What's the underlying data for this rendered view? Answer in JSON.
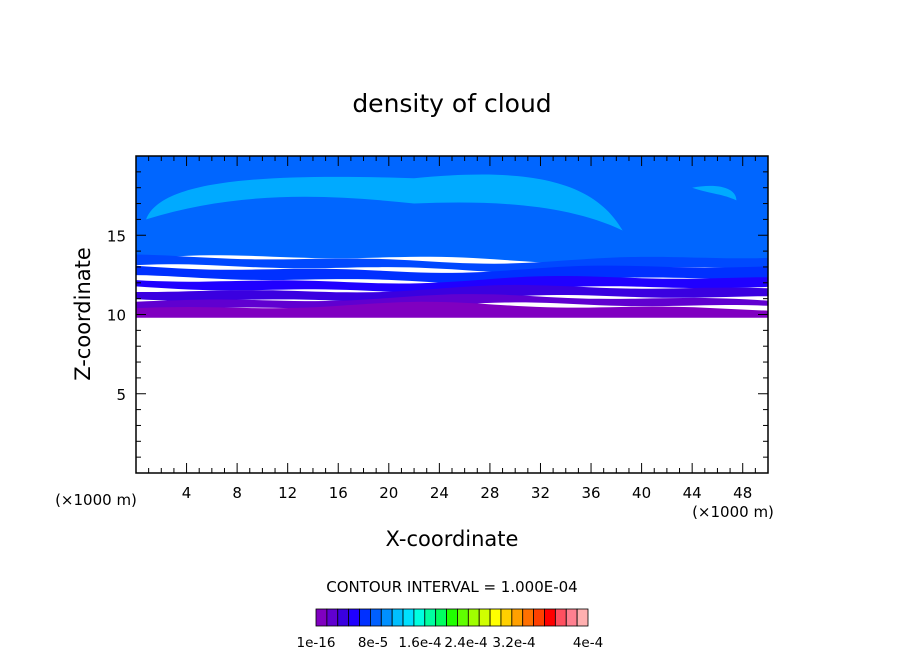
{
  "chart_data": {
    "type": "heatmap",
    "title": "density of cloud",
    "xlabel": "X-coordinate",
    "ylabel": "Z-coordinate",
    "x_unit_left": "(×1000 m)",
    "x_unit_right": "(×1000 m)",
    "xlim": [
      0,
      50
    ],
    "ylim": [
      0,
      20
    ],
    "x_ticks": [
      4,
      8,
      12,
      16,
      20,
      24,
      28,
      32,
      36,
      40,
      44,
      48
    ],
    "y_ticks": [
      5,
      10,
      15
    ],
    "contour_interval_text": "CONTOUR INTERVAL = 1.000E-04",
    "colorbar_labels": [
      "1e-16",
      "8e-5",
      "1.6e-4",
      "2.4e-4",
      "3.2e-4",
      "4e-4"
    ],
    "colorbar_colors": [
      "#8000c0",
      "#6000d0",
      "#3a00e0",
      "#2000ff",
      "#0030ff",
      "#0060ff",
      "#0090ff",
      "#00bfff",
      "#00e0ff",
      "#00ffe0",
      "#00ffa0",
      "#00ff60",
      "#20ff00",
      "#60ff00",
      "#a0ff00",
      "#d0ff00",
      "#ffff00",
      "#ffd000",
      "#ffa000",
      "#ff7000",
      "#ff4000",
      "#ff0000",
      "#ff5060",
      "#ff8090",
      "#ffb0b0"
    ],
    "bands": [
      {
        "z_bottom": 9.8,
        "z_top": 10.5,
        "color": "#8000c0"
      },
      {
        "z_bottom": 10.5,
        "z_top": 11.0,
        "color": "#6000d0"
      },
      {
        "z_bottom": 11.0,
        "z_top": 11.6,
        "color": "#3a00e0"
      },
      {
        "z_bottom": 11.6,
        "z_top": 12.2,
        "color": "#2000ff"
      },
      {
        "z_bottom": 12.2,
        "z_top": 12.9,
        "color": "#0030ff"
      },
      {
        "z_bottom": 12.9,
        "z_top": 13.5,
        "color": "#0048ff"
      },
      {
        "z_bottom": 13.5,
        "z_top": 20.0,
        "color": "#0066ff"
      }
    ],
    "light_region_color": "#00aaff"
  }
}
